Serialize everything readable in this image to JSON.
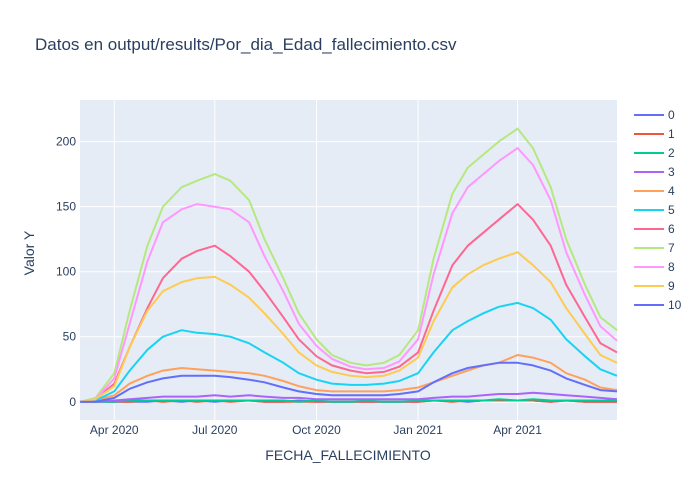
{
  "chart_data": {
    "type": "line",
    "title": "Datos en output/results/Por_dia_Edad_fallecimiento.csv",
    "xlabel": "FECHA_FALLECIMIENTO",
    "ylabel": "Valor Y",
    "x_range": [
      "2020-03-01",
      "2021-06-30"
    ],
    "ylim": [
      -14,
      232
    ],
    "x_ticks": [
      {
        "date": "2020-04-01",
        "label": "Apr 2020"
      },
      {
        "date": "2020-07-01",
        "label": "Jul 2020"
      },
      {
        "date": "2020-10-01",
        "label": "Oct 2020"
      },
      {
        "date": "2021-01-01",
        "label": "Jan 2021"
      },
      {
        "date": "2021-04-01",
        "label": "Apr 2021"
      }
    ],
    "y_ticks": [
      0,
      50,
      100,
      150,
      200
    ],
    "grid": true,
    "legend_position": "right",
    "background": "#e5ecf6",
    "x": [
      "2020-03-01",
      "2020-03-15",
      "2020-04-01",
      "2020-04-15",
      "2020-05-01",
      "2020-05-15",
      "2020-06-01",
      "2020-06-15",
      "2020-07-01",
      "2020-07-15",
      "2020-08-01",
      "2020-08-15",
      "2020-09-01",
      "2020-09-15",
      "2020-10-01",
      "2020-10-15",
      "2020-11-01",
      "2020-11-15",
      "2020-12-01",
      "2020-12-15",
      "2021-01-01",
      "2021-01-15",
      "2021-02-01",
      "2021-02-15",
      "2021-03-01",
      "2021-03-15",
      "2021-04-01",
      "2021-04-15",
      "2021-05-01",
      "2021-05-15",
      "2021-06-01",
      "2021-06-15",
      "2021-06-30"
    ],
    "series": [
      {
        "name": "0",
        "color": "#636efa",
        "values": [
          0,
          0,
          0,
          0,
          0,
          1,
          0,
          1,
          0,
          1,
          1,
          0,
          0,
          1,
          0,
          0,
          0,
          0,
          0,
          0,
          0,
          1,
          1,
          0,
          1,
          1,
          1,
          1,
          0,
          1,
          0,
          0,
          0
        ]
      },
      {
        "name": "1",
        "color": "#ef553b",
        "values": [
          0,
          0,
          0,
          0,
          1,
          0,
          1,
          0,
          1,
          0,
          1,
          0,
          0,
          0,
          0,
          0,
          0,
          0,
          0,
          0,
          0,
          1,
          0,
          1,
          1,
          1,
          1,
          1,
          0,
          1,
          0,
          0,
          0
        ]
      },
      {
        "name": "2",
        "color": "#00cc96",
        "values": [
          0,
          0,
          0,
          1,
          1,
          1,
          1,
          1,
          1,
          1,
          1,
          1,
          1,
          0,
          1,
          0,
          0,
          1,
          0,
          0,
          1,
          1,
          1,
          1,
          1,
          2,
          1,
          2,
          1,
          1,
          1,
          1,
          1
        ]
      },
      {
        "name": "3",
        "color": "#ab63fa",
        "values": [
          0,
          0,
          1,
          2,
          3,
          4,
          4,
          4,
          5,
          4,
          5,
          4,
          3,
          3,
          2,
          2,
          2,
          2,
          2,
          2,
          2,
          3,
          4,
          4,
          5,
          6,
          6,
          7,
          6,
          5,
          4,
          3,
          2
        ]
      },
      {
        "name": "4",
        "color": "#ffa15a",
        "values": [
          0,
          1,
          5,
          14,
          20,
          24,
          26,
          25,
          24,
          23,
          22,
          20,
          16,
          12,
          9,
          8,
          8,
          8,
          8,
          9,
          11,
          15,
          20,
          24,
          28,
          30,
          36,
          34,
          30,
          22,
          17,
          11,
          9
        ]
      },
      {
        "name": "5",
        "color": "#19d3f3",
        "values": [
          0,
          1,
          8,
          24,
          40,
          50,
          55,
          53,
          52,
          50,
          45,
          38,
          30,
          22,
          17,
          14,
          13,
          13,
          14,
          16,
          22,
          38,
          55,
          62,
          68,
          73,
          76,
          72,
          63,
          48,
          35,
          25,
          20
        ]
      },
      {
        "name": "6",
        "color": "#ff6692",
        "values": [
          0,
          2,
          14,
          42,
          72,
          95,
          110,
          116,
          120,
          112,
          100,
          85,
          65,
          48,
          35,
          28,
          24,
          22,
          23,
          27,
          38,
          70,
          105,
          120,
          130,
          140,
          152,
          140,
          120,
          90,
          65,
          45,
          38
        ]
      },
      {
        "name": "7",
        "color": "#b6e880",
        "values": [
          0,
          3,
          22,
          70,
          120,
          150,
          165,
          170,
          175,
          170,
          155,
          125,
          95,
          68,
          48,
          36,
          30,
          28,
          30,
          36,
          55,
          110,
          160,
          180,
          190,
          200,
          210,
          195,
          165,
          125,
          90,
          65,
          55
        ]
      },
      {
        "name": "8",
        "color": "#ff97ff",
        "values": [
          0,
          2,
          18,
          60,
          108,
          138,
          148,
          152,
          150,
          148,
          138,
          112,
          85,
          60,
          43,
          33,
          27,
          25,
          26,
          31,
          48,
          98,
          145,
          165,
          175,
          185,
          195,
          182,
          155,
          115,
          82,
          58,
          47
        ]
      },
      {
        "name": "9",
        "color": "#fecb52",
        "values": [
          0,
          2,
          12,
          42,
          70,
          85,
          92,
          95,
          96,
          90,
          80,
          68,
          52,
          38,
          28,
          23,
          20,
          19,
          20,
          24,
          34,
          62,
          88,
          98,
          105,
          110,
          115,
          105,
          92,
          72,
          52,
          36,
          30
        ]
      },
      {
        "name": "10",
        "color": "#636efa",
        "values": [
          0,
          0,
          3,
          10,
          15,
          18,
          20,
          20,
          20,
          19,
          17,
          15,
          11,
          8,
          6,
          5,
          5,
          5,
          5,
          6,
          8,
          15,
          22,
          26,
          28,
          30,
          30,
          28,
          24,
          18,
          13,
          9,
          8
        ]
      }
    ]
  }
}
